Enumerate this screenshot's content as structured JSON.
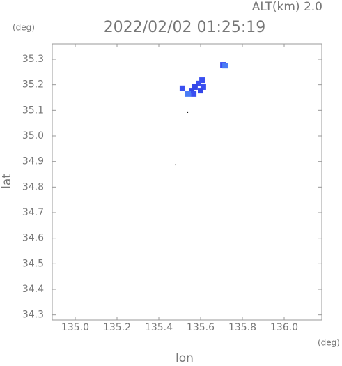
{
  "chart_data": {
    "type": "scatter",
    "title": "2022/02/02 01:25:19",
    "subtitle": "ALT(km) 2.0",
    "xlabel": "lon",
    "ylabel": "lat",
    "x_unit": "(deg)",
    "y_unit": "(deg)",
    "xlim": [
      134.89,
      136.18
    ],
    "ylim": [
      34.28,
      35.36
    ],
    "xticks": [
      {
        "value": 135,
        "label": "135.0"
      },
      135.2,
      135.4,
      135.6,
      135.8,
      {
        "value": 136,
        "label": "136.0"
      }
    ],
    "yticks": [
      34.3,
      34.4,
      34.5,
      34.6,
      34.7,
      34.8,
      {
        "value": 34.9,
        "label": "34.9"
      },
      {
        "value": 35,
        "label": "35.0"
      },
      35.1,
      35.2,
      35.3
    ],
    "x": [
      135.607,
      135.59,
      135.573,
      135.613,
      135.557,
      135.54,
      135.513,
      135.6,
      135.567,
      135.707,
      135.717,
      135.537,
      135.48
    ],
    "y": [
      35.218,
      35.205,
      35.191,
      35.191,
      35.177,
      35.164,
      35.186,
      35.177,
      35.164,
      35.278,
      35.275,
      35.093,
      34.888
    ],
    "colors": [
      "#3a4ff0",
      "#3a4ff0",
      "#3346e8",
      "#3a4ff0",
      "#3346e8",
      "#4a7cf5",
      "#3a4ff0",
      "#3346e8",
      "#3a4ff0",
      "#3a4ff0",
      "#4a7cf5",
      "#000000",
      "#bbbbbb"
    ]
  }
}
